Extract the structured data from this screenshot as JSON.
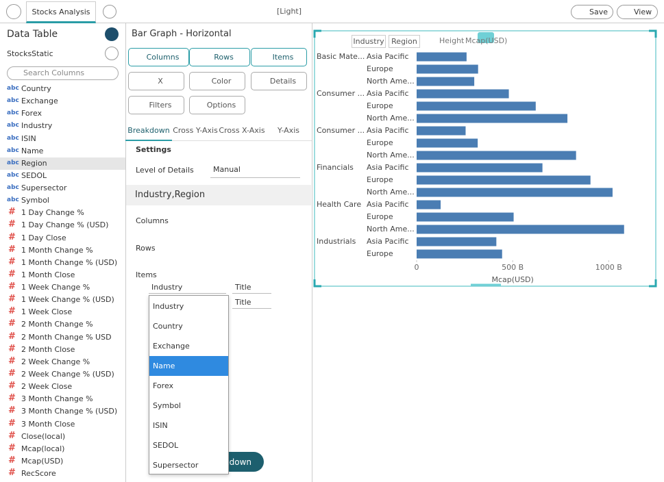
{
  "toolbar": {
    "tab": "Stocks Analysis",
    "theme": "[Light]",
    "save": "Save",
    "view": "View"
  },
  "data_table": {
    "title": "Data Table",
    "source": "StocksStatic",
    "search": "Search Columns",
    "columns": [
      {
        "type": "abc",
        "name": "Country"
      },
      {
        "type": "abc",
        "name": "Exchange"
      },
      {
        "type": "abc",
        "name": "Forex"
      },
      {
        "type": "abc",
        "name": "Industry"
      },
      {
        "type": "abc",
        "name": "ISIN"
      },
      {
        "type": "abc",
        "name": "Name"
      },
      {
        "type": "abc",
        "name": "Region"
      },
      {
        "type": "abc",
        "name": "SEDOL"
      },
      {
        "type": "abc",
        "name": "Supersector"
      },
      {
        "type": "abc",
        "name": "Symbol"
      },
      {
        "type": "#",
        "name": "1 Day Change %"
      },
      {
        "type": "#",
        "name": "1 Day Change % (USD)"
      },
      {
        "type": "#",
        "name": "1 Day Close"
      },
      {
        "type": "#",
        "name": "1 Month Change %"
      },
      {
        "type": "#",
        "name": "1 Month Change % (USD)"
      },
      {
        "type": "#",
        "name": "1 Month Close"
      },
      {
        "type": "#",
        "name": "1 Week Change %"
      },
      {
        "type": "#",
        "name": "1 Week Change % (USD)"
      },
      {
        "type": "#",
        "name": "1 Week Close"
      },
      {
        "type": "#",
        "name": "2 Month Change %"
      },
      {
        "type": "#",
        "name": "2 Month Change % USD"
      },
      {
        "type": "#",
        "name": "2 Month Close"
      },
      {
        "type": "#",
        "name": "2 Week Change %"
      },
      {
        "type": "#",
        "name": "2 Week Change % (USD)"
      },
      {
        "type": "#",
        "name": "2 Week Close"
      },
      {
        "type": "#",
        "name": "3 Month Change %"
      },
      {
        "type": "#",
        "name": "3 Month Change % (USD)"
      },
      {
        "type": "#",
        "name": "3 Month Close"
      },
      {
        "type": "#",
        "name": "Close(local)"
      },
      {
        "type": "#",
        "name": "Mcap(local)"
      },
      {
        "type": "#",
        "name": "Mcap(USD)"
      },
      {
        "type": "#",
        "name": "RecScore"
      }
    ]
  },
  "settings": {
    "title": "Bar Graph - Horizontal",
    "buttons": [
      "Columns",
      "Rows",
      "Items",
      "X",
      "Color",
      "Details",
      "Filters",
      "Options"
    ],
    "tabs": [
      "Breakdown",
      "Cross Y-Axis",
      "Cross X-Axis",
      "Y-Axis"
    ],
    "section": "Settings",
    "level_label": "Level of Details",
    "level_value": "Manual",
    "breakdown": "Industry,Region",
    "columns_label": "Columns",
    "rows_label": "Rows",
    "items_label": "Items",
    "items": [
      {
        "field": "Industry",
        "title": "Title"
      },
      {
        "title": "Title"
      }
    ],
    "button": "Breakdown"
  },
  "dropdown": {
    "options": [
      "Industry",
      "Country",
      "Exchange",
      "Name",
      "Forex",
      "Symbol",
      "ISIN",
      "SEDOL",
      "Supersector"
    ]
  },
  "chart_toolbar": [
    "Industry",
    "Region",
    "Height",
    "Mcap(USD)"
  ],
  "chart_data": {
    "type": "bar",
    "orientation": "horizontal",
    "category_groups": [
      "Basic Mate...",
      null,
      null,
      "Consumer ...",
      null,
      null,
      "Consumer ...",
      null,
      null,
      "Financials",
      null,
      null,
      "Health Care",
      null,
      null,
      "Industrials",
      null
    ],
    "categories": [
      "Asia Pacific",
      "Europe",
      "North Ame...",
      "Asia Pacific",
      "Europe",
      "North Ame...",
      "Asia Pacific",
      "Europe",
      "North Ame...",
      "Asia Pacific",
      "Europe",
      "North Ame...",
      "Asia Pacific",
      "Europe",
      "North Ame...",
      "Asia Pacific",
      "Europe"
    ],
    "values": [
      260,
      320,
      300,
      480,
      620,
      785,
      255,
      318,
      830,
      655,
      905,
      1020,
      125,
      505,
      1080,
      415,
      445
    ],
    "color": "#4a7db3",
    "xlim": [
      0,
      1220
    ],
    "xticks": [
      0,
      {
        "value": 500,
        "label": "500 B"
      },
      {
        "value": 1000,
        "label": "1000 B"
      }
    ],
    "xlabel": "Mcap(USD)"
  }
}
